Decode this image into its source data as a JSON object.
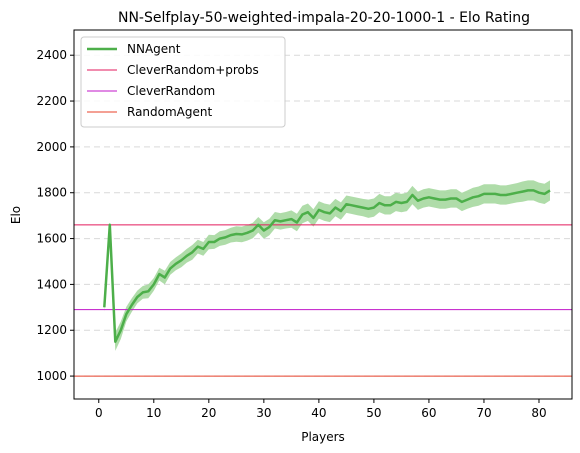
{
  "chart_data": {
    "type": "line",
    "title": "NN-Selfplay-50-weighted-impala-20-20-1000-1 - Elo Rating",
    "xlabel": "Players",
    "ylabel": "Elo",
    "xlim": [
      -4.5,
      86
    ],
    "ylim": [
      900,
      2510
    ],
    "xticks": [
      0,
      10,
      20,
      30,
      40,
      50,
      60,
      70,
      80
    ],
    "yticks": [
      1000,
      1200,
      1400,
      1600,
      1800,
      2000,
      2200,
      2400
    ],
    "grid": "horizontal dashed",
    "legend_position": "top-left",
    "series": [
      {
        "name": "NNAgent",
        "color": "#4daf4a",
        "band_color": "#a6d8a0",
        "x": [
          1,
          2,
          3,
          4,
          5,
          6,
          7,
          8,
          9,
          10,
          11,
          12,
          13,
          14,
          15,
          16,
          17,
          18,
          19,
          20,
          21,
          22,
          23,
          24,
          25,
          26,
          27,
          28,
          29,
          30,
          31,
          32,
          33,
          34,
          35,
          36,
          37,
          38,
          39,
          40,
          41,
          42,
          43,
          44,
          45,
          46,
          47,
          48,
          49,
          50,
          51,
          52,
          53,
          54,
          55,
          56,
          57,
          58,
          59,
          60,
          61,
          62,
          63,
          64,
          65,
          66,
          67,
          68,
          69,
          70,
          71,
          72,
          73,
          74,
          75,
          76,
          77,
          78,
          79,
          80,
          81,
          82
        ],
        "values": [
          1300,
          1660,
          1150,
          1200,
          1270,
          1310,
          1345,
          1365,
          1370,
          1400,
          1445,
          1430,
          1470,
          1490,
          1505,
          1525,
          1540,
          1565,
          1555,
          1585,
          1585,
          1600,
          1605,
          1615,
          1620,
          1618,
          1625,
          1635,
          1660,
          1635,
          1650,
          1680,
          1675,
          1680,
          1685,
          1670,
          1705,
          1715,
          1690,
          1725,
          1715,
          1710,
          1735,
          1720,
          1750,
          1745,
          1740,
          1735,
          1730,
          1735,
          1755,
          1745,
          1745,
          1760,
          1755,
          1760,
          1790,
          1765,
          1775,
          1780,
          1775,
          1770,
          1770,
          1775,
          1775,
          1760,
          1770,
          1780,
          1785,
          1795,
          1795,
          1795,
          1790,
          1790,
          1795,
          1800,
          1805,
          1810,
          1810,
          1800,
          1795,
          1810
        ],
        "band": [
          20,
          12,
          40,
          38,
          32,
          30,
          28,
          28,
          30,
          28,
          28,
          30,
          28,
          28,
          30,
          30,
          32,
          30,
          30,
          32,
          30,
          32,
          32,
          32,
          34,
          34,
          34,
          34,
          34,
          36,
          36,
          36,
          36,
          36,
          38,
          38,
          38,
          38,
          38,
          38,
          38,
          38,
          38,
          38,
          38,
          38,
          38,
          38,
          40,
          40,
          40,
          40,
          40,
          40,
          40,
          40,
          40,
          40,
          40,
          40,
          40,
          40,
          40,
          40,
          40,
          40,
          40,
          42,
          42,
          42,
          42,
          42,
          42,
          42,
          42,
          42,
          44,
          44,
          44,
          44,
          44,
          44
        ]
      },
      {
        "name": "CleverRandom+probs",
        "color": "#e31a5c",
        "hline": 1660
      },
      {
        "name": "CleverRandom",
        "color": "#c116c8",
        "hline": 1290
      },
      {
        "name": "RandomAgent",
        "color": "#e8412a",
        "hline": 1000
      }
    ]
  }
}
